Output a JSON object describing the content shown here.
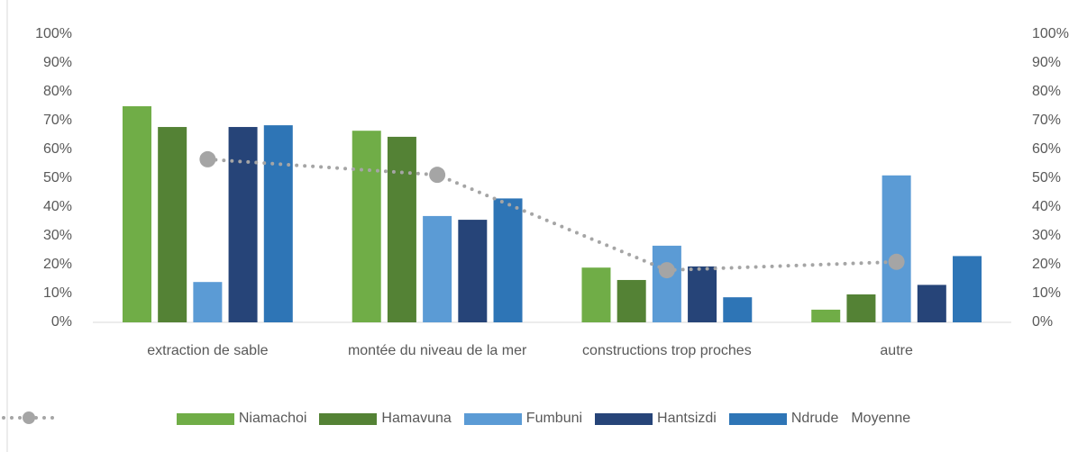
{
  "chart_data": {
    "type": "bar",
    "categories": [
      "extraction de sable",
      "montée du niveau de la mer",
      "constructions trop proches",
      "autre"
    ],
    "series": [
      {
        "name": "Niamachoi",
        "color": "#70ad47",
        "values": [
          75,
          66.5,
          19,
          4.4
        ]
      },
      {
        "name": "Hamavuna",
        "color": "#548235",
        "values": [
          67.8,
          64.4,
          14.7,
          9.7
        ]
      },
      {
        "name": "Fumbuni",
        "color": "#5b9bd5",
        "values": [
          14,
          36.9,
          26.6,
          51
        ]
      },
      {
        "name": "Hantsizdi",
        "color": "#264478",
        "values": [
          67.8,
          35.6,
          19.4,
          13
        ]
      },
      {
        "name": "Ndrude",
        "color": "#2e75b6",
        "values": [
          68.4,
          43,
          8.7,
          23
        ]
      },
      {
        "name": "Moyenne",
        "color": "#a5a5a5",
        "type": "line",
        "axis": "y2",
        "values": [
          56.6,
          51.2,
          18.1,
          21
        ]
      }
    ],
    "ylim": [
      0,
      100
    ],
    "yticks": [
      {
        "value": 0,
        "label": "0%"
      },
      {
        "value": 10,
        "label": "10%"
      },
      {
        "value": 20,
        "label": "20%"
      },
      {
        "value": 30,
        "label": "30%"
      },
      {
        "value": 40,
        "label": "40%"
      },
      {
        "value": 50,
        "label": "50%"
      },
      {
        "value": 60,
        "label": "60%"
      },
      {
        "value": 70,
        "label": "70%"
      },
      {
        "value": 80,
        "label": "80%"
      },
      {
        "value": 90,
        "label": "90%"
      },
      {
        "value": 100,
        "label": "100%"
      }
    ],
    "y2lim": [
      0,
      100
    ],
    "y2ticks": [
      {
        "value": 0,
        "label": "0%"
      },
      {
        "value": 10,
        "label": "10%"
      },
      {
        "value": 20,
        "label": "20%"
      },
      {
        "value": 30,
        "label": "30%"
      },
      {
        "value": 40,
        "label": "40%"
      },
      {
        "value": 50,
        "label": "50%"
      },
      {
        "value": 60,
        "label": "60%"
      },
      {
        "value": 70,
        "label": "70%"
      },
      {
        "value": 80,
        "label": "80%"
      },
      {
        "value": 90,
        "label": "90%"
      },
      {
        "value": 100,
        "label": "100%"
      }
    ],
    "grid": false,
    "legend": "bottom"
  }
}
